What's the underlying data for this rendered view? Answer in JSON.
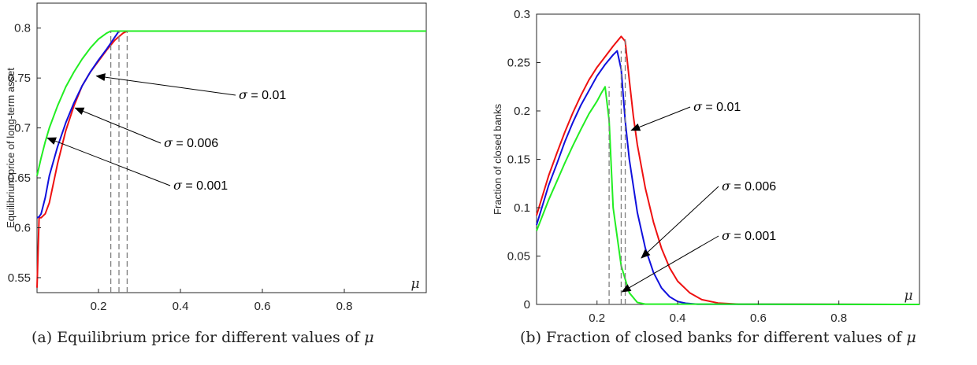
{
  "captions": [
    {
      "text": "(a) Equilibrium price for different values of ",
      "sym": "μ"
    },
    {
      "text": "(b) Fraction of closed banks for different values of ",
      "sym": "μ"
    }
  ],
  "colors": {
    "sigma_0_01": "#ee1111",
    "sigma_0_006": "#1010dd",
    "sigma_0_001": "#22ee22",
    "vline": "#7f7f7f"
  },
  "chart_data": [
    {
      "type": "line",
      "xlabel": "μ",
      "ylabel": "Equilibrium price of long-term asset",
      "xlim": [
        0.05,
        1.0
      ],
      "ylim": [
        0.535,
        0.825
      ],
      "xticks": [
        0.2,
        0.4,
        0.6,
        0.8
      ],
      "yticks": [
        0.55,
        0.6,
        0.65,
        0.7,
        0.75,
        0.8
      ],
      "xtick_labels": [
        "0.2",
        "0.4",
        "0.6",
        "0.8"
      ],
      "ytick_labels": [
        "0.55",
        "0.6",
        "0.65",
        "0.7",
        "0.75",
        "0.8"
      ],
      "grid": false,
      "series": [
        {
          "name": "σ = 0.01",
          "color": "#ee1111",
          "x": [
            0.05,
            0.055,
            0.06,
            0.07,
            0.08,
            0.1,
            0.12,
            0.14,
            0.16,
            0.18,
            0.2,
            0.22,
            0.24,
            0.26,
            0.27,
            1.0
          ],
          "y": [
            0.54,
            0.61,
            0.61,
            0.614,
            0.625,
            0.664,
            0.697,
            0.722,
            0.742,
            0.756,
            0.767,
            0.778,
            0.788,
            0.795,
            0.797,
            0.797
          ]
        },
        {
          "name": "σ = 0.006",
          "color": "#1010dd",
          "x": [
            0.05,
            0.055,
            0.06,
            0.07,
            0.08,
            0.1,
            0.12,
            0.14,
            0.16,
            0.18,
            0.2,
            0.22,
            0.24,
            0.25,
            1.0
          ],
          "y": [
            0.61,
            0.611,
            0.614,
            0.63,
            0.652,
            0.681,
            0.705,
            0.725,
            0.742,
            0.756,
            0.768,
            0.779,
            0.791,
            0.797,
            0.797
          ]
        },
        {
          "name": "σ = 0.001",
          "color": "#22ee22",
          "x": [
            0.05,
            0.06,
            0.07,
            0.08,
            0.1,
            0.12,
            0.14,
            0.16,
            0.18,
            0.2,
            0.22,
            0.23,
            1.0
          ],
          "y": [
            0.652,
            0.67,
            0.686,
            0.7,
            0.722,
            0.741,
            0.756,
            0.769,
            0.78,
            0.789,
            0.795,
            0.797,
            0.797
          ]
        }
      ],
      "vlines": [
        0.23,
        0.25,
        0.27
      ],
      "annotations": [
        {
          "label_sym": "σ",
          "label_val": " = 0.01",
          "x": 0.195,
          "y": 0.752
        },
        {
          "label_sym": "σ",
          "label_val": " = 0.006",
          "x": 0.143,
          "y": 0.72
        },
        {
          "label_sym": "σ",
          "label_val": " = 0.001",
          "x": 0.075,
          "y": 0.69
        }
      ]
    },
    {
      "type": "line",
      "xlabel": "μ",
      "ylabel": "Fraction of closed banks",
      "xlim": [
        0.05,
        1.0
      ],
      "ylim": [
        0,
        0.3
      ],
      "xticks": [
        0.2,
        0.4,
        0.6,
        0.8
      ],
      "yticks": [
        0,
        0.05,
        0.1,
        0.15,
        0.2,
        0.25,
        0.3
      ],
      "xtick_labels": [
        "0.2",
        "0.4",
        "0.6",
        "0.8"
      ],
      "ytick_labels": [
        "0",
        "0.05",
        "0.1",
        "0.15",
        "0.2",
        "0.25",
        "0.3"
      ],
      "grid": false,
      "series": [
        {
          "name": "σ = 0.01",
          "color": "#ee1111",
          "x": [
            0.05,
            0.08,
            0.1,
            0.12,
            0.14,
            0.16,
            0.18,
            0.2,
            0.22,
            0.24,
            0.26,
            0.27,
            0.28,
            0.29,
            0.3,
            0.32,
            0.34,
            0.36,
            0.38,
            0.4,
            0.43,
            0.46,
            0.5,
            0.55,
            1.0
          ],
          "y": [
            0.092,
            0.133,
            0.156,
            0.178,
            0.198,
            0.216,
            0.232,
            0.245,
            0.256,
            0.267,
            0.277,
            0.272,
            0.232,
            0.195,
            0.165,
            0.12,
            0.085,
            0.058,
            0.038,
            0.024,
            0.012,
            0.005,
            0.0015,
            0.0003,
            0
          ]
        },
        {
          "name": "σ = 0.006",
          "color": "#1010dd",
          "x": [
            0.05,
            0.08,
            0.1,
            0.12,
            0.14,
            0.16,
            0.18,
            0.2,
            0.22,
            0.24,
            0.25,
            0.26,
            0.27,
            0.28,
            0.3,
            0.32,
            0.34,
            0.36,
            0.38,
            0.4,
            0.42,
            0.45,
            1.0
          ],
          "y": [
            0.082,
            0.123,
            0.145,
            0.168,
            0.188,
            0.206,
            0.221,
            0.236,
            0.248,
            0.258,
            0.262,
            0.243,
            0.19,
            0.15,
            0.095,
            0.058,
            0.033,
            0.017,
            0.008,
            0.003,
            0.0012,
            0.0002,
            0
          ]
        },
        {
          "name": "σ = 0.001",
          "color": "#22ee22",
          "x": [
            0.05,
            0.08,
            0.1,
            0.12,
            0.14,
            0.16,
            0.18,
            0.2,
            0.21,
            0.22,
            0.23,
            0.24,
            0.26,
            0.28,
            0.3,
            0.32,
            1.0
          ],
          "y": [
            0.076,
            0.108,
            0.127,
            0.146,
            0.164,
            0.181,
            0.197,
            0.21,
            0.218,
            0.225,
            0.19,
            0.1,
            0.04,
            0.012,
            0.002,
            0.0003,
            0
          ]
        }
      ],
      "vlines": [
        0.23,
        0.26,
        0.27
      ],
      "annotations": [
        {
          "label_sym": "σ",
          "label_val": " = 0.01",
          "x": 0.285,
          "y": 0.18
        },
        {
          "label_sym": "σ",
          "label_val": " = 0.006",
          "x": 0.31,
          "y": 0.048
        },
        {
          "label_sym": "σ",
          "label_val": " = 0.001",
          "x": 0.262,
          "y": 0.013
        }
      ]
    }
  ]
}
